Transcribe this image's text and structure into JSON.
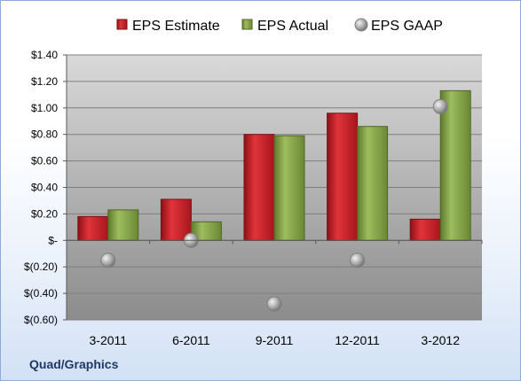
{
  "company_label": "Quad/Graphics",
  "chart_data": {
    "type": "bar",
    "title": "",
    "xlabel": "",
    "ylabel": "",
    "categories": [
      "3-2011",
      "6-2011",
      "9-2011",
      "12-2011",
      "3-2012"
    ],
    "series": [
      {
        "name": "EPS Estimate",
        "kind": "bar",
        "color": "#c0262c",
        "values": [
          0.18,
          0.31,
          0.8,
          0.96,
          0.16
        ]
      },
      {
        "name": "EPS Actual",
        "kind": "bar",
        "color": "#86a44a",
        "values": [
          0.23,
          0.14,
          0.79,
          0.86,
          1.13
        ]
      },
      {
        "name": "EPS GAAP",
        "kind": "marker",
        "color": "#a6a6a6",
        "values": [
          -0.15,
          0.0,
          -0.48,
          -0.15,
          1.01
        ]
      }
    ],
    "ylim": [
      -0.6,
      1.4
    ],
    "yticks": [
      1.4,
      1.2,
      1.0,
      0.8,
      0.6,
      0.4,
      0.2,
      0,
      -0.2,
      -0.4,
      -0.6
    ],
    "ytick_labels": [
      "$1.40",
      "$1.20",
      "$1.00",
      "$0.80",
      "$0.60",
      "$0.40",
      "$0.20",
      "$-",
      "$(0.20)",
      "$(0.40)",
      "$(0.60)"
    ],
    "grid": true,
    "legend_position": "top"
  }
}
